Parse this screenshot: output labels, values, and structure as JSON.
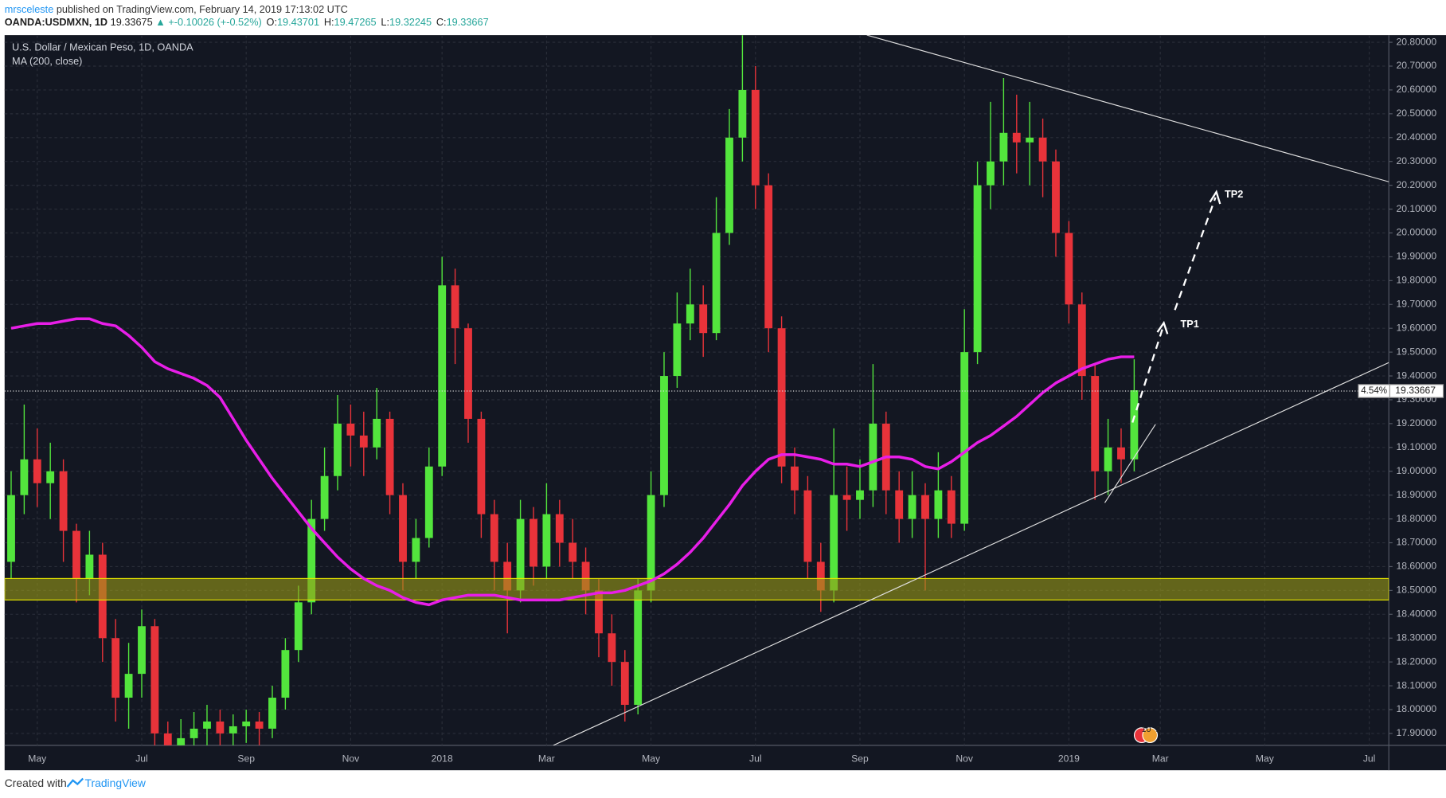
{
  "header": {
    "user": "mrsceleste",
    "published": " published on TradingView.com, February 14, 2019 17:13:02 UTC",
    "symbol": "OANDA:USDMXN, 1D",
    "last": 19.33675,
    "change": "▲ +-0.10026 (+-0.52%)",
    "ohlc": [
      {
        "label": "O:",
        "value": 19.43701
      },
      {
        "label": "H:",
        "value": 19.47265
      },
      {
        "label": "L:",
        "value": 19.32245
      },
      {
        "label": "C:",
        "value": 19.33667
      }
    ]
  },
  "footer": {
    "created": "Created with",
    "brand": "TradingView"
  },
  "chart_data": {
    "type": "candlestick",
    "title": "U.S. Dollar / Mexican Peso, 1D, OANDA",
    "indicator": "MA (200, close)",
    "up_color": "#53e53d",
    "down_color": "#e8333a",
    "ma_color": "#e81ee8",
    "zone": [
      18.46,
      18.55
    ],
    "zone_color": "#9a9a18",
    "last_price": 19.33667,
    "last_pct": "4.54%",
    "annotations": [
      "TP1",
      "TP2"
    ],
    "events": [
      "10",
      "2"
    ],
    "grid": true,
    "ylim": [
      17.85,
      20.83
    ],
    "yticks": [
      {
        "value": 17.9,
        "label": "17.90000"
      },
      {
        "value": 18.0,
        "label": "18.00000"
      },
      {
        "value": 18.1,
        "label": "18.10000"
      },
      {
        "value": 18.2,
        "label": "18.20000"
      },
      {
        "value": 18.3,
        "label": "18.30000"
      },
      {
        "value": 18.4,
        "label": "18.40000"
      },
      {
        "value": 18.5,
        "label": "18.50000"
      },
      {
        "value": 18.6,
        "label": "18.60000"
      },
      {
        "value": 18.7,
        "label": "18.70000"
      },
      {
        "value": 18.8,
        "label": "18.80000"
      },
      {
        "value": 18.9,
        "label": "18.90000"
      },
      {
        "value": 19.0,
        "label": "19.00000"
      },
      {
        "value": 19.1,
        "label": "19.10000"
      },
      {
        "value": 19.2,
        "label": "19.20000"
      },
      {
        "value": 19.3,
        "label": "19.30000"
      },
      {
        "value": 19.4,
        "label": "19.40000"
      },
      {
        "value": 19.5,
        "label": "19.50000"
      },
      {
        "value": 19.6,
        "label": "19.60000"
      },
      {
        "value": 19.7,
        "label": "19.70000"
      },
      {
        "value": 19.8,
        "label": "19.80000"
      },
      {
        "value": 19.9,
        "label": "19.90000"
      },
      {
        "value": 20.0,
        "label": "20.00000"
      },
      {
        "value": 20.1,
        "label": "20.10000"
      },
      {
        "value": 20.2,
        "label": "20.20000"
      },
      {
        "value": 20.3,
        "label": "20.30000"
      },
      {
        "value": 20.4,
        "label": "20.40000"
      },
      {
        "value": 20.5,
        "label": "20.50000"
      },
      {
        "value": 20.6,
        "label": "20.60000"
      },
      {
        "value": 20.7,
        "label": "20.70000"
      },
      {
        "value": 20.8,
        "label": "20.80000"
      }
    ],
    "categories": [
      null,
      null,
      "May",
      null,
      null,
      null,
      null,
      null,
      null,
      null,
      "Jul",
      null,
      null,
      null,
      null,
      null,
      null,
      null,
      "Sep",
      null,
      null,
      null,
      null,
      null,
      null,
      null,
      "Nov",
      null,
      null,
      null,
      null,
      null,
      null,
      "2018",
      null,
      null,
      null,
      null,
      null,
      null,
      null,
      "Mar",
      null,
      null,
      null,
      null,
      null,
      null,
      null,
      "May",
      null,
      null,
      null,
      null,
      null,
      null,
      null,
      "Jul",
      null,
      null,
      null,
      null,
      null,
      null,
      null,
      "Sep",
      null,
      null,
      null,
      null,
      null,
      null,
      null,
      "Nov",
      null,
      null,
      null,
      null,
      null,
      null,
      null,
      "2019",
      null,
      null,
      null,
      null,
      null,
      null,
      "Mar",
      null,
      null,
      null,
      null,
      null,
      null,
      null,
      "May",
      null,
      null,
      null,
      null,
      null,
      null,
      null,
      "Jul",
      null
    ],
    "open": [
      18.62,
      18.9,
      19.05,
      18.95,
      19.0,
      18.75,
      18.55,
      18.65,
      18.3,
      18.05,
      18.15,
      18.35,
      17.9,
      17.85,
      17.88,
      17.92,
      17.95,
      17.9,
      17.93,
      17.95,
      17.92,
      18.05,
      18.25,
      18.45,
      18.8,
      18.98,
      19.2,
      19.15,
      19.1,
      19.22,
      18.9,
      18.62,
      18.72,
      19.02,
      19.78,
      19.6,
      19.22,
      18.82,
      18.62,
      18.5,
      18.8,
      18.6,
      18.82,
      18.7,
      18.62,
      18.5,
      18.32,
      18.2,
      18.02,
      18.5,
      18.9,
      19.4,
      19.62,
      19.7,
      19.58,
      20.0,
      20.4,
      20.6,
      20.2,
      19.6,
      19.02,
      18.92,
      18.62,
      18.5,
      18.9,
      18.88,
      18.92,
      19.2,
      18.92,
      18.8,
      18.9,
      18.8,
      18.92,
      18.78,
      19.5,
      20.2,
      20.3,
      20.42,
      20.38,
      20.4,
      20.3,
      20.0,
      19.7,
      19.4,
      19.0,
      19.1,
      19.05,
      null,
      null,
      null,
      null,
      null,
      null,
      null,
      null,
      null,
      null,
      null,
      null,
      null,
      null,
      null,
      null,
      null,
      null,
      null
    ],
    "high": [
      19.0,
      19.28,
      19.18,
      19.12,
      19.05,
      18.78,
      18.75,
      18.7,
      18.38,
      18.28,
      18.42,
      18.38,
      17.95,
      17.96,
      17.99,
      18.02,
      18.0,
      17.98,
      18.0,
      17.99,
      18.1,
      18.3,
      18.52,
      18.88,
      19.1,
      19.32,
      19.28,
      19.25,
      19.35,
      19.25,
      18.95,
      18.8,
      19.1,
      19.9,
      19.85,
      19.62,
      19.25,
      18.88,
      18.7,
      18.88,
      18.85,
      18.95,
      18.88,
      18.8,
      18.68,
      18.55,
      18.4,
      18.25,
      18.55,
      19.0,
      19.5,
      19.75,
      19.85,
      19.78,
      20.15,
      20.52,
      20.83,
      20.7,
      20.25,
      19.65,
      19.1,
      18.98,
      18.7,
      19.18,
      19.02,
      19.05,
      19.45,
      19.25,
      19.0,
      19.0,
      18.95,
      19.08,
      18.98,
      19.68,
      20.3,
      20.55,
      20.65,
      20.58,
      20.55,
      20.48,
      20.35,
      20.05,
      19.75,
      19.45,
      19.22,
      19.18,
      19.47,
      null,
      null,
      null,
      null,
      null,
      null,
      null,
      null,
      null,
      null,
      null,
      null,
      null,
      null,
      null,
      null,
      null,
      null,
      null
    ],
    "low": [
      18.55,
      18.82,
      18.85,
      18.8,
      18.62,
      18.45,
      18.48,
      18.2,
      17.95,
      17.92,
      18.05,
      17.8,
      17.75,
      17.78,
      17.8,
      17.84,
      17.82,
      17.84,
      17.86,
      17.85,
      17.88,
      18.0,
      18.2,
      18.4,
      18.75,
      18.92,
      19.02,
      18.98,
      19.05,
      18.82,
      18.5,
      18.55,
      18.68,
      18.98,
      19.45,
      19.12,
      18.72,
      18.5,
      18.32,
      18.45,
      18.52,
      18.55,
      18.6,
      18.55,
      18.4,
      18.22,
      18.1,
      17.95,
      17.98,
      18.45,
      18.85,
      19.35,
      19.55,
      19.48,
      19.55,
      19.95,
      20.3,
      20.1,
      19.5,
      18.95,
      18.82,
      18.55,
      18.41,
      18.45,
      18.75,
      18.8,
      18.85,
      18.82,
      18.7,
      18.72,
      18.5,
      18.72,
      18.72,
      18.75,
      19.45,
      20.1,
      20.2,
      20.25,
      20.2,
      20.15,
      19.9,
      19.62,
      19.3,
      18.88,
      18.9,
      18.95,
      19.0,
      null,
      null,
      null,
      null,
      null,
      null,
      null,
      null,
      null,
      null,
      null,
      null,
      null,
      null,
      null,
      null,
      null,
      null,
      null
    ],
    "close": [
      18.9,
      19.05,
      18.95,
      19.0,
      18.75,
      18.55,
      18.65,
      18.3,
      18.05,
      18.15,
      18.35,
      17.9,
      17.85,
      17.88,
      17.92,
      17.95,
      17.9,
      17.93,
      17.95,
      17.92,
      18.05,
      18.25,
      18.45,
      18.8,
      18.98,
      19.2,
      19.15,
      19.1,
      19.22,
      18.9,
      18.62,
      18.72,
      19.02,
      19.78,
      19.6,
      19.22,
      18.82,
      18.62,
      18.5,
      18.8,
      18.6,
      18.82,
      18.7,
      18.62,
      18.5,
      18.32,
      18.2,
      18.02,
      18.5,
      18.9,
      19.4,
      19.62,
      19.7,
      19.58,
      20.0,
      20.4,
      20.6,
      20.2,
      19.6,
      19.02,
      18.92,
      18.62,
      18.5,
      18.9,
      18.88,
      18.92,
      19.2,
      18.92,
      18.8,
      18.9,
      18.8,
      18.92,
      18.78,
      19.5,
      20.2,
      20.3,
      20.42,
      20.38,
      20.4,
      20.3,
      20.0,
      19.7,
      19.4,
      19.0,
      19.1,
      19.05,
      19.34,
      null,
      null,
      null,
      null,
      null,
      null,
      null,
      null,
      null,
      null,
      null,
      null,
      null,
      null,
      null,
      null,
      null,
      null,
      null
    ],
    "ma": [
      19.6,
      19.61,
      19.62,
      19.62,
      19.63,
      19.64,
      19.64,
      19.62,
      19.61,
      19.57,
      19.52,
      19.46,
      19.43,
      19.41,
      19.39,
      19.36,
      19.31,
      19.22,
      19.13,
      19.05,
      18.97,
      18.9,
      18.83,
      18.76,
      18.7,
      18.64,
      18.59,
      18.55,
      18.52,
      18.5,
      18.47,
      18.45,
      18.44,
      18.46,
      18.47,
      18.48,
      18.48,
      18.48,
      18.47,
      18.46,
      18.46,
      18.46,
      18.46,
      18.47,
      18.48,
      18.49,
      18.49,
      18.5,
      18.52,
      18.54,
      18.57,
      18.61,
      18.66,
      18.72,
      18.79,
      18.86,
      18.94,
      19.0,
      19.05,
      19.07,
      19.07,
      19.06,
      19.05,
      19.03,
      19.03,
      19.02,
      19.04,
      19.06,
      19.06,
      19.05,
      19.02,
      19.01,
      19.04,
      19.08,
      19.12,
      19.15,
      19.19,
      19.23,
      19.28,
      19.33,
      19.37,
      19.4,
      19.43,
      19.45,
      19.47,
      19.48,
      19.48,
      null,
      null,
      null,
      null,
      null,
      null,
      null,
      null,
      null,
      null,
      null,
      null,
      null,
      null,
      null,
      null,
      null,
      null,
      null
    ]
  }
}
